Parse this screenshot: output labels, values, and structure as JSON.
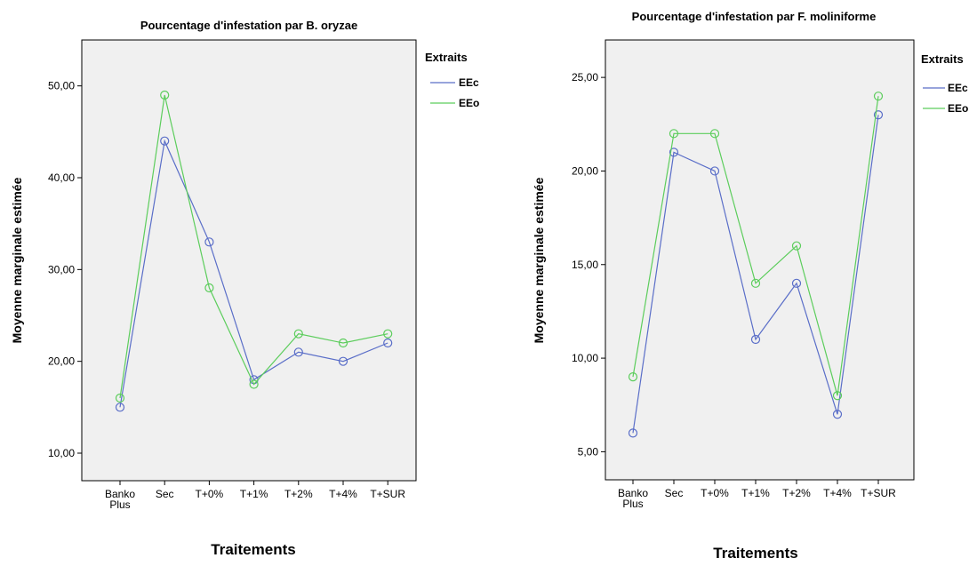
{
  "chart_data": [
    {
      "type": "line",
      "title": "Pourcentage d'infestation par B. oryzae",
      "xlabel": "Traitements",
      "ylabel": "Moyenne marginale estimée",
      "categories": [
        [
          "Banko",
          "Plus"
        ],
        [
          "Sec"
        ],
        [
          "T+0%"
        ],
        [
          "T+1%"
        ],
        [
          "T+2%"
        ],
        [
          "T+4%"
        ],
        [
          "T+SUR"
        ]
      ],
      "ylim": [
        7,
        55
      ],
      "yticks": [
        "10,00",
        "20,00",
        "30,00",
        "40,00",
        "50,00"
      ],
      "ytick_values": [
        10,
        20,
        30,
        40,
        50
      ],
      "legend_title": "Extraits",
      "legend_position": "right",
      "series": [
        {
          "name": "EEc",
          "color": "#5a6ec8",
          "values": [
            15,
            44,
            33,
            18,
            21,
            20,
            22
          ]
        },
        {
          "name": "EEo",
          "color": "#5ccd5c",
          "values": [
            16,
            49,
            28,
            17.5,
            23,
            22,
            23
          ]
        }
      ]
    },
    {
      "type": "line",
      "title": "Pourcentage d'infestation par F. moliniforme",
      "xlabel": "Traitements",
      "ylabel": "Moyenne marginale estimée",
      "categories": [
        [
          "Banko",
          "Plus"
        ],
        [
          "Sec"
        ],
        [
          "T+0%"
        ],
        [
          "T+1%"
        ],
        [
          "T+2%"
        ],
        [
          "T+4%"
        ],
        [
          "T+SUR"
        ]
      ],
      "ylim": [
        3.5,
        27
      ],
      "yticks": [
        "5,00",
        "10,00",
        "15,00",
        "20,00",
        "25,00"
      ],
      "ytick_values": [
        5,
        10,
        15,
        20,
        25
      ],
      "legend_title": "Extraits",
      "legend_position": "right",
      "series": [
        {
          "name": "EEc",
          "color": "#5a6ec8",
          "values": [
            6,
            21,
            20,
            11,
            14,
            7,
            23
          ]
        },
        {
          "name": "EEo",
          "color": "#5ccd5c",
          "values": [
            9,
            22,
            22,
            14,
            16,
            8,
            24
          ]
        }
      ]
    }
  ]
}
